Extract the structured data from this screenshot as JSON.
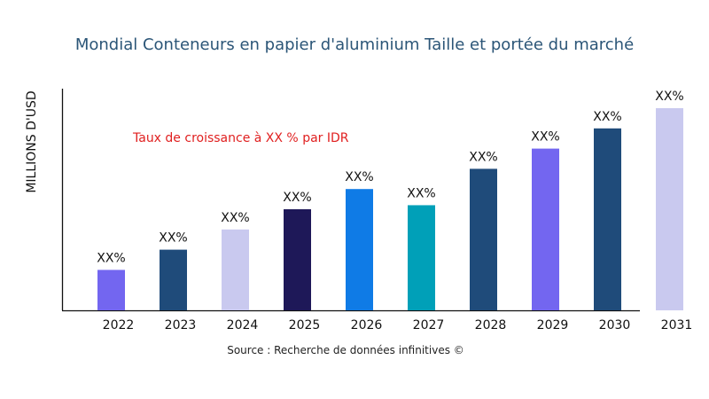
{
  "chart_data": {
    "type": "bar",
    "title": "Mondial Conteneurs en papier d'aluminium Taille et portée du marché",
    "ylabel": "MILLIONS D'USD",
    "xlabel": "",
    "categories": [
      "2022",
      "2023",
      "2024",
      "2025",
      "2026",
      "2027",
      "2028",
      "2029",
      "2030",
      "2031"
    ],
    "values": [
      20,
      30,
      40,
      50,
      60,
      52,
      70,
      80,
      90,
      100
    ],
    "data_labels": [
      "XX%",
      "XX%",
      "XX%",
      "XX%",
      "XX%",
      "XX%",
      "XX%",
      "XX%",
      "XX%",
      "XX%"
    ],
    "colors": [
      "#7366f0",
      "#1f4b7a",
      "#c9c9ef",
      "#1e1858",
      "#0f7be6",
      "#00a0b8",
      "#1f4b7a",
      "#7366f0",
      "#1f4b7a",
      "#c9c9ef"
    ],
    "ylim": [
      0,
      110
    ],
    "grid": false,
    "annotation": "Taux de croissance à XX % par IDR",
    "annotation_color": "#e02020",
    "source": "Source : Recherche de données infinitives ©"
  }
}
